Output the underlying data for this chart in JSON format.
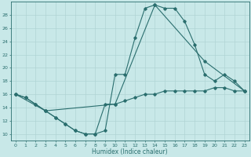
{
  "xlabel": "Humidex (Indice chaleur)",
  "bg_color": "#c8e8e8",
  "line_color": "#2a6e6e",
  "grid_color": "#b0d4d4",
  "xlim": [
    -0.5,
    23.5
  ],
  "ylim": [
    9,
    30
  ],
  "yticks": [
    10,
    12,
    14,
    16,
    18,
    20,
    22,
    24,
    26,
    28
  ],
  "xticks": [
    0,
    1,
    2,
    3,
    4,
    5,
    6,
    7,
    8,
    9,
    10,
    11,
    12,
    13,
    14,
    15,
    16,
    17,
    18,
    19,
    20,
    21,
    22,
    23
  ],
  "line1_x": [
    0,
    1,
    2,
    3,
    4,
    5,
    6,
    7,
    8,
    9,
    10,
    11,
    12,
    13,
    14,
    15,
    16,
    17,
    18,
    19,
    20,
    21,
    22,
    23
  ],
  "line1_y": [
    16,
    15.5,
    14.5,
    13.5,
    12.5,
    11.5,
    10.5,
    10,
    10,
    10.5,
    19,
    19,
    24.5,
    29,
    29.5,
    29,
    29,
    27,
    23.5,
    19,
    18,
    19,
    18,
    16.5
  ],
  "line2_x": [
    0,
    1,
    2,
    3,
    4,
    5,
    6,
    7,
    8,
    9,
    10,
    11,
    12,
    13,
    14,
    15,
    16,
    17,
    18,
    19,
    20,
    21,
    22,
    23
  ],
  "line2_y": [
    16,
    15.5,
    14.5,
    13.5,
    12.5,
    11.5,
    10.5,
    10,
    10,
    14.5,
    14.5,
    15,
    15.5,
    16,
    16,
    16.5,
    16.5,
    16.5,
    16.5,
    16.5,
    17,
    17,
    16.5,
    16.5
  ],
  "line3_x": [
    0,
    3,
    10,
    14,
    19,
    23
  ],
  "line3_y": [
    16,
    13.5,
    14.5,
    29.5,
    21,
    16.5
  ]
}
